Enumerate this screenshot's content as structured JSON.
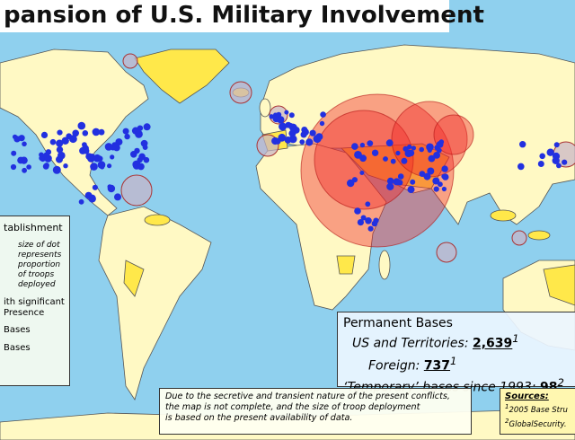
{
  "title": "pansion of U.S. Military Involvement",
  "legend": {
    "heading": "tablishment",
    "dot_note": [
      "size of dot",
      "represents",
      "proportion",
      "of troops",
      "deployed"
    ],
    "items": [
      "ith significant",
      "Presence",
      "Bases",
      "Bases"
    ]
  },
  "permanent_bases": {
    "heading": "Permanent Bases",
    "rows": [
      {
        "label": "US and Territories:",
        "value": "2,639",
        "note": "1"
      },
      {
        "label": "Foreign:",
        "value": "737",
        "note": "1"
      },
      {
        "label": "‘Temporary’ bases since 1993:",
        "value": "98",
        "note": "2"
      }
    ]
  },
  "disclaimer": [
    "Due to the secretive and transient nature of the present conflicts,",
    "the map is not complete, and the size of troop deployment",
    "is based on the present availability of data."
  ],
  "sources": {
    "heading": "Sources:",
    "items": [
      {
        "note": "1",
        "text": "2005 Base Stru"
      },
      {
        "note": "2",
        "text": "GlobalSecurity."
      }
    ]
  }
}
